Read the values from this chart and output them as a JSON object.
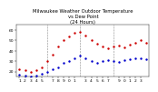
{
  "title": "Milwaukee Weather Outdoor Temperature\nvs Dew Point\n(24 Hours)",
  "title_fontsize": 3.8,
  "background_color": "#ffffff",
  "grid_color": "#888888",
  "ylim": [
    15,
    65
  ],
  "xlim": [
    0.5,
    24.5
  ],
  "yticks": [
    20,
    30,
    40,
    50,
    60
  ],
  "ytick_labels": [
    "20",
    "30",
    "40",
    "50",
    "60"
  ],
  "vlines": [
    6,
    12,
    18
  ],
  "temp_x": [
    1,
    2,
    3,
    4,
    5,
    6,
    7,
    8,
    9,
    10,
    11,
    12,
    13,
    14,
    15,
    16,
    17,
    18,
    19,
    20,
    21,
    22,
    23,
    24
  ],
  "temp_y": [
    22,
    21,
    20,
    21,
    24,
    30,
    36,
    44,
    50,
    54,
    57,
    58,
    55,
    50,
    47,
    44,
    42,
    44,
    45,
    43,
    46,
    48,
    50,
    48
  ],
  "dew_x": [
    1,
    2,
    3,
    4,
    5,
    6,
    7,
    8,
    9,
    10,
    11,
    12,
    13,
    14,
    15,
    16,
    17,
    18,
    19,
    20,
    21,
    22,
    23,
    24
  ],
  "dew_y": [
    17,
    16,
    15,
    16,
    18,
    20,
    22,
    24,
    28,
    30,
    33,
    35,
    33,
    30,
    28,
    30,
    31,
    30,
    29,
    31,
    32,
    33,
    33,
    32
  ],
  "temp_color": "#cc0000",
  "dew_color": "#0000cc",
  "marker_size": 1.5,
  "tick_fontsize": 3.2,
  "xtick_positions": [
    1,
    2,
    3,
    4,
    5,
    7,
    8,
    9,
    10,
    11,
    13,
    14,
    15,
    16,
    17,
    19,
    20,
    21,
    22,
    23
  ],
  "xtick_labels": [
    "1",
    "2",
    "3",
    "4",
    "5",
    "7",
    "8",
    "9",
    "0",
    "1",
    "3",
    "4",
    "5",
    "6",
    "7",
    "9",
    "0",
    "1",
    "2",
    "3"
  ]
}
